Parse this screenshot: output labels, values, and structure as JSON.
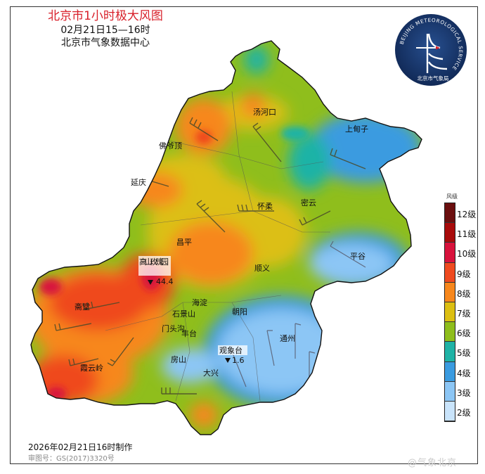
{
  "header": {
    "title": "北京市1小时极大风图",
    "time_range": "02月21日15—16时",
    "issuer": "北京市气象数据中心"
  },
  "logo": {
    "ring_text": "BEIJING METEOROLOGICAL SERVICE",
    "bottom_text": "北京市气象局",
    "colors": {
      "background": "#1a3a6e",
      "mark": "#ffffff",
      "accent": "#d8202a"
    }
  },
  "map": {
    "place_labels": [
      {
        "name": "汤河口"
      },
      {
        "name": "上甸子"
      },
      {
        "name": "佛爷顶"
      },
      {
        "name": "延庆"
      },
      {
        "name": "怀柔"
      },
      {
        "name": "密云"
      },
      {
        "name": "昌平"
      },
      {
        "name": "平谷"
      },
      {
        "name": "顺义"
      },
      {
        "name": "高山玫瑰园"
      },
      {
        "name": "海淀"
      },
      {
        "name": "朝阳"
      },
      {
        "name": "石景山"
      },
      {
        "name": "门头沟"
      },
      {
        "name": "丰台"
      },
      {
        "name": "斋堂"
      },
      {
        "name": "通州"
      },
      {
        "name": "观象台"
      },
      {
        "name": "房山"
      },
      {
        "name": "大兴"
      },
      {
        "name": "霞云岭"
      }
    ],
    "station_values": {
      "max_station": "高山玫瑰园",
      "max_value": "44.4",
      "observatory_station": "观象台",
      "observatory_value": "1.6"
    }
  },
  "legend": {
    "title": "风级",
    "items": [
      {
        "label": "12级",
        "color": "#6b0f0f"
      },
      {
        "label": "11级",
        "color": "#a80b0b"
      },
      {
        "label": "10级",
        "color": "#d8123c"
      },
      {
        "label": "9级",
        "color": "#ef4a1f"
      },
      {
        "label": "8级",
        "color": "#f7871c"
      },
      {
        "label": "7级",
        "color": "#dcbf12"
      },
      {
        "label": "6级",
        "color": "#8fbe1c"
      },
      {
        "label": "5级",
        "color": "#1fb3a6"
      },
      {
        "label": "4级",
        "color": "#3a9be0"
      },
      {
        "label": "3级",
        "color": "#8cc6f5"
      },
      {
        "label": "2级",
        "color": "#c9e4fb"
      }
    ]
  },
  "footer": {
    "produced": "2026年02月21日16时制作",
    "approval_code": "审图号：GS(2017)3320号"
  },
  "watermark": "@气象北京"
}
